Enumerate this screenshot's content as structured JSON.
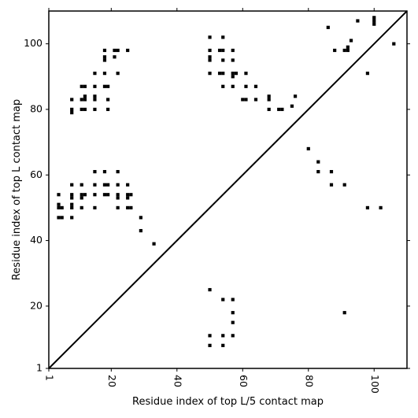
{
  "chart_data": {
    "type": "scatter",
    "xlabel": "Residue index of top L/5 contact map",
    "ylabel": "Residue index of top L contact map",
    "xlim": [
      1,
      110
    ],
    "ylim": [
      1,
      110
    ],
    "x_ticks": [
      1,
      20,
      40,
      60,
      80,
      100
    ],
    "x_tick_labels": [
      "1",
      "20",
      "40",
      "60",
      "80",
      "100"
    ],
    "y_ticks": [
      1,
      20,
      40,
      60,
      80,
      100
    ],
    "y_tick_labels": [
      "1",
      "20",
      "40",
      "60",
      "80",
      "100"
    ],
    "grid": false,
    "diagonal": {
      "from": [
        1,
        1
      ],
      "to": [
        110,
        110
      ]
    },
    "series": [
      {
        "marker": "square",
        "color": "#000000",
        "points": [
          [
            4,
            54
          ],
          [
            4,
            51
          ],
          [
            4,
            50
          ],
          [
            4,
            47
          ],
          [
            5,
            50
          ],
          [
            5,
            47
          ],
          [
            8,
            57
          ],
          [
            8,
            54
          ],
          [
            8,
            53
          ],
          [
            8,
            51
          ],
          [
            8,
            50
          ],
          [
            8,
            47
          ],
          [
            11,
            57
          ],
          [
            11,
            54
          ],
          [
            11,
            53
          ],
          [
            11,
            50
          ],
          [
            12,
            54
          ],
          [
            15,
            61
          ],
          [
            15,
            57
          ],
          [
            15,
            54
          ],
          [
            15,
            50
          ],
          [
            18,
            61
          ],
          [
            18,
            57
          ],
          [
            18,
            54
          ],
          [
            19,
            57
          ],
          [
            19,
            54
          ],
          [
            22,
            61
          ],
          [
            22,
            57
          ],
          [
            22,
            54
          ],
          [
            22,
            53
          ],
          [
            22,
            50
          ],
          [
            25,
            57
          ],
          [
            25,
            54
          ],
          [
            25,
            53
          ],
          [
            25,
            50
          ],
          [
            26,
            54
          ],
          [
            26,
            50
          ],
          [
            29,
            47
          ],
          [
            29,
            43
          ],
          [
            33,
            39
          ],
          [
            8,
            83
          ],
          [
            8,
            80
          ],
          [
            8,
            79
          ],
          [
            11,
            87
          ],
          [
            11,
            83
          ],
          [
            11,
            80
          ],
          [
            12,
            87
          ],
          [
            12,
            84
          ],
          [
            12,
            83
          ],
          [
            12,
            80
          ],
          [
            15,
            91
          ],
          [
            15,
            87
          ],
          [
            15,
            84
          ],
          [
            15,
            83
          ],
          [
            15,
            80
          ],
          [
            18,
            98
          ],
          [
            18,
            96
          ],
          [
            18,
            95
          ],
          [
            18,
            91
          ],
          [
            18,
            87
          ],
          [
            19,
            87
          ],
          [
            19,
            83
          ],
          [
            19,
            80
          ],
          [
            21,
            98
          ],
          [
            21,
            96
          ],
          [
            22,
            98
          ],
          [
            22,
            91
          ],
          [
            25,
            98
          ],
          [
            50,
            102
          ],
          [
            50,
            98
          ],
          [
            50,
            96
          ],
          [
            50,
            95
          ],
          [
            50,
            91
          ],
          [
            53,
            98
          ],
          [
            53,
            91
          ],
          [
            54,
            102
          ],
          [
            54,
            98
          ],
          [
            54,
            95
          ],
          [
            54,
            91
          ],
          [
            54,
            87
          ],
          [
            57,
            98
          ],
          [
            57,
            95
          ],
          [
            57,
            91
          ],
          [
            57,
            90
          ],
          [
            57,
            87
          ],
          [
            58,
            91
          ],
          [
            60,
            83
          ],
          [
            61,
            91
          ],
          [
            61,
            87
          ],
          [
            61,
            83
          ],
          [
            64,
            87
          ],
          [
            64,
            83
          ],
          [
            68,
            84
          ],
          [
            68,
            83
          ],
          [
            68,
            80
          ],
          [
            71,
            80
          ],
          [
            72,
            80
          ],
          [
            75,
            81
          ],
          [
            76,
            84
          ],
          [
            50,
            25
          ],
          [
            50,
            11
          ],
          [
            50,
            8
          ],
          [
            54,
            22
          ],
          [
            54,
            11
          ],
          [
            54,
            8
          ],
          [
            57,
            22
          ],
          [
            57,
            18
          ],
          [
            57,
            15
          ],
          [
            57,
            11
          ],
          [
            80,
            68
          ],
          [
            83,
            64
          ],
          [
            83,
            61
          ],
          [
            87,
            61
          ],
          [
            87,
            57
          ],
          [
            91,
            57
          ],
          [
            91,
            18
          ],
          [
            98,
            50
          ],
          [
            102,
            50
          ],
          [
            86,
            105
          ],
          [
            88,
            98
          ],
          [
            91,
            98
          ],
          [
            92,
            99
          ],
          [
            92,
            98
          ],
          [
            93,
            101
          ],
          [
            95,
            107
          ],
          [
            98,
            91
          ],
          [
            100,
            108
          ],
          [
            100,
            107
          ],
          [
            100,
            106
          ],
          [
            106,
            100
          ]
        ]
      }
    ]
  }
}
